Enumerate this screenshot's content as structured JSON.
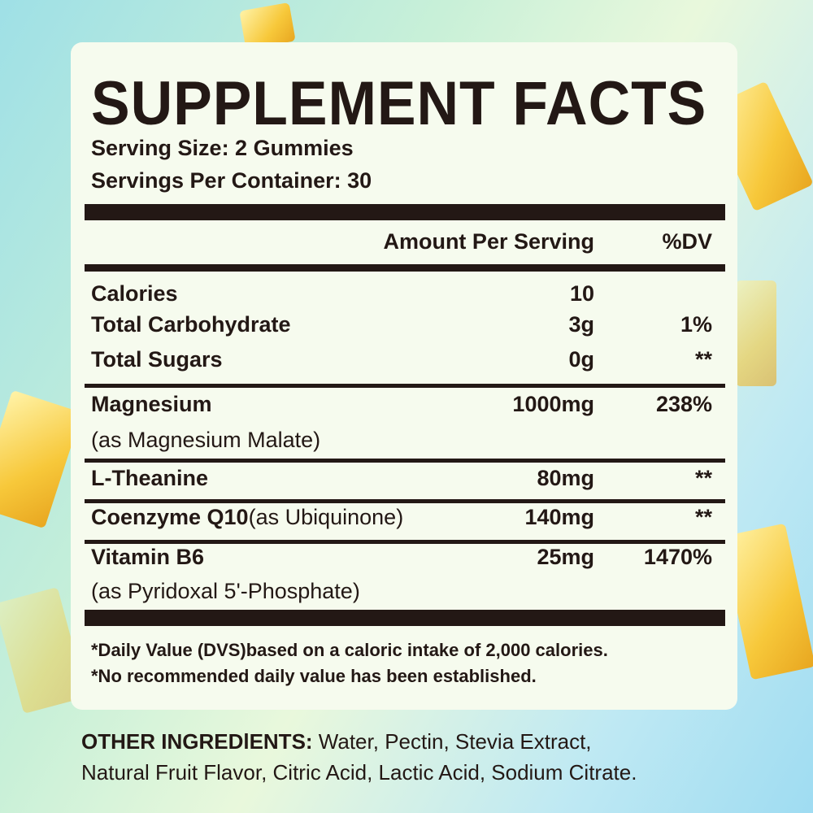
{
  "title": "SUPPLEMENT FACTS",
  "serving_size": "Serving Size: 2 Gummies",
  "servings_per_container": "Servings Per Container: 30",
  "headers": {
    "amount": "Amount Per Serving",
    "dv": "%DV"
  },
  "rows": [
    {
      "name": "Calories",
      "amount": "10",
      "dv": ""
    },
    {
      "name": "Total Carbohydrate",
      "amount": "3g",
      "dv": "1%"
    },
    {
      "name": "Total Sugars",
      "amount": "0g",
      "dv": "**"
    },
    {
      "name": "Magnesium",
      "note": "(as Magnesium Malate)",
      "amount": "1000mg",
      "dv": "238%"
    },
    {
      "name": "L-Theanine",
      "amount": "80mg",
      "dv": "**"
    },
    {
      "name": "Coenzyme Q10",
      "note": "(as Ubiquinone)",
      "amount": "140mg",
      "dv": "**"
    },
    {
      "name": "Vitamin B6",
      "note": "(as Pyridoxal 5'-Phosphate)",
      "amount": "25mg",
      "dv": "1470%"
    }
  ],
  "footnotes": [
    "*Daily Value (DVS)based on a caloric intake of 2,000 calories.",
    "*No recommended daily value has been established."
  ],
  "other_ingredients": {
    "label": "OTHER INGREDlENTS:",
    "line1": " Water, Pectin, Stevia Extract,",
    "line2": "Natural Fruit Flavor, Citric Acid, Lactic Acid, Sodium Citrate."
  },
  "colors": {
    "text": "#231815",
    "panel": "#f6fbee",
    "pineapple": "#f7c83a"
  }
}
